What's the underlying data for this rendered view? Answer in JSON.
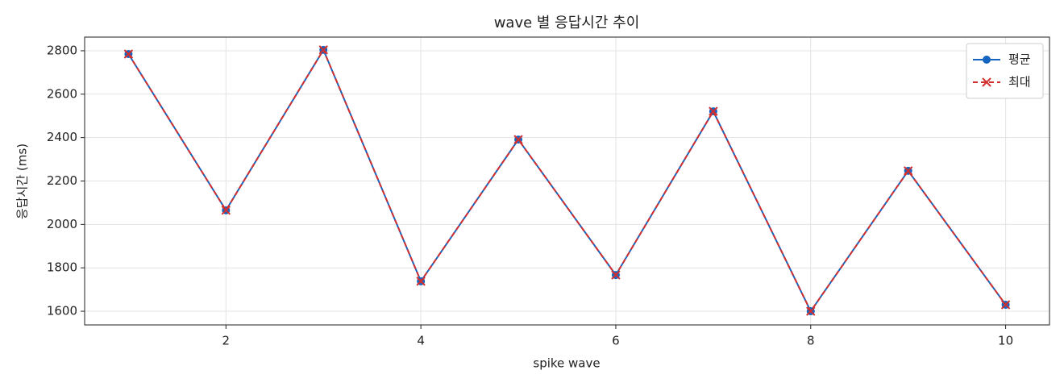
{
  "chart_data": {
    "type": "line",
    "title": "wave 별 응답시간 추이",
    "x_label": "spike wave",
    "y_label": "응답시간 (ms)",
    "x": [
      1,
      2,
      3,
      4,
      5,
      6,
      7,
      8,
      9,
      10
    ],
    "series": [
      {
        "name": "평균",
        "color": "#1565c0",
        "dash": false,
        "marker": "circle",
        "values": [
          2785,
          2065,
          2804,
          1738,
          2391,
          1767,
          2521,
          1600,
          2247,
          1630
        ]
      },
      {
        "name": "최대",
        "color": "#d32f2f",
        "dash": true,
        "marker": "x",
        "values": [
          2785,
          2065,
          2804,
          1738,
          2391,
          1767,
          2521,
          1600,
          2247,
          1630
        ]
      }
    ],
    "xlim": [
      0.55,
      10.45
    ],
    "xticks": [
      2,
      4,
      6,
      8,
      10
    ],
    "ylim": [
      1537,
      2863
    ],
    "yticks": [
      1600,
      1800,
      2000,
      2200,
      2400,
      2600,
      2800
    ],
    "grid": true,
    "legend": "upper-right"
  }
}
